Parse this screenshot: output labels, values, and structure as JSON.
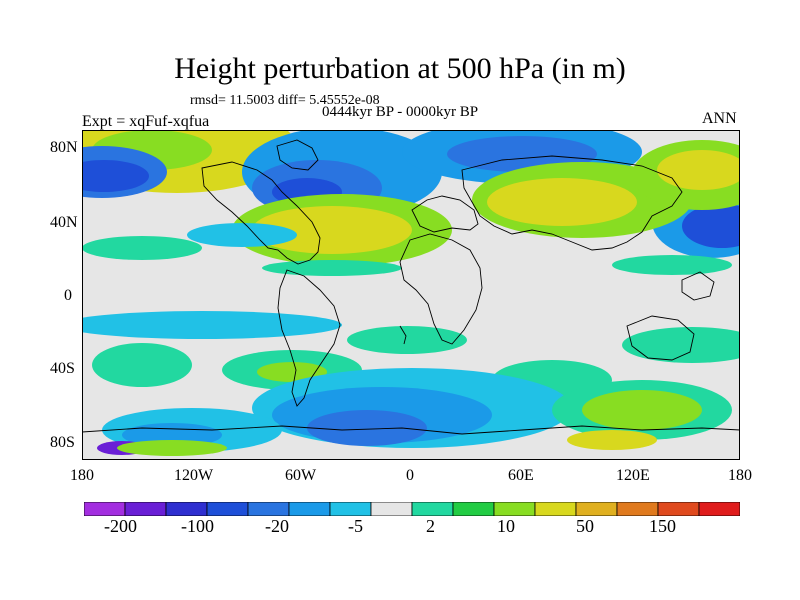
{
  "title": "Height perturbation at 500 hPa (in m)",
  "stats_line": "rmsd= 11.5003 diff= 5.45552e-08",
  "period_line": "0444kyr BP - 0000kyr BP",
  "experiment_label": "Expt = xqFuf-xqfua",
  "season_label": "ANN",
  "map": {
    "lat_ticks": [
      "80N",
      "40N",
      "0",
      "40S",
      "80S"
    ],
    "lon_ticks": [
      "180",
      "120W",
      "60W",
      "0",
      "60E",
      "120E",
      "180"
    ],
    "zero_band_color": "#e6e6e6"
  },
  "colorbar": {
    "colors": [
      "#a32ee0",
      "#6a1fd6",
      "#2f2fd0",
      "#1e4fd8",
      "#2a74e0",
      "#1b9ae8",
      "#21c1e6",
      "#e6e6e6",
      "#22d8a0",
      "#22cc44",
      "#88dd22",
      "#d8d81e",
      "#e0b020",
      "#e07a1e",
      "#e04a1e",
      "#e01c1c"
    ],
    "labels": [
      "-200",
      "-100",
      "-20",
      "-5",
      "2",
      "10",
      "50",
      "150"
    ]
  }
}
